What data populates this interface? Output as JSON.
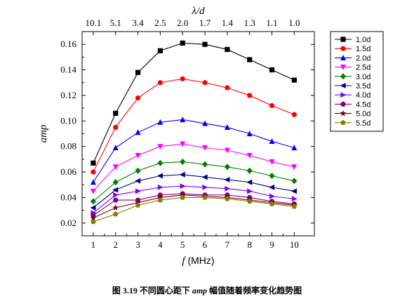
{
  "chart_data": {
    "type": "line",
    "xlabel_italic": "f",
    "xlabel_unit": "(MHz)",
    "ylabel": "amp",
    "top_axis_label": "λ/d",
    "xlim": [
      0.5,
      10.9
    ],
    "ylim": [
      0.01,
      0.17
    ],
    "x_ticks": [
      "1",
      "2",
      "3",
      "4",
      "5",
      "6",
      "7",
      "8",
      "9",
      "10"
    ],
    "y_ticks": [
      "0.02",
      "0.04",
      "0.06",
      "0.08",
      "0.10",
      "0.12",
      "0.14",
      "0.16"
    ],
    "y_tick_values": [
      0.02,
      0.04,
      0.06,
      0.08,
      0.1,
      0.12,
      0.14,
      0.16
    ],
    "top_ticks": [
      "10.1",
      "5.1",
      "3.4",
      "2.5",
      "2.0",
      "1.7",
      "1.4",
      "1.3",
      "1.1",
      "1.0"
    ],
    "legend_position": "right",
    "grid": false,
    "x": [
      1,
      2,
      3,
      4,
      5,
      6,
      7,
      8,
      9,
      10
    ],
    "series": [
      {
        "name": "1.0d",
        "color": "#000000",
        "marker": "square",
        "values": [
          0.067,
          0.106,
          0.138,
          0.155,
          0.161,
          0.16,
          0.156,
          0.148,
          0.14,
          0.132
        ]
      },
      {
        "name": "1.5d",
        "color": "#ff0000",
        "marker": "circle",
        "values": [
          0.06,
          0.095,
          0.118,
          0.13,
          0.133,
          0.13,
          0.126,
          0.12,
          0.112,
          0.105
        ]
      },
      {
        "name": "2.0d",
        "color": "#0000ff",
        "marker": "triangle-up",
        "values": [
          0.052,
          0.079,
          0.091,
          0.099,
          0.101,
          0.098,
          0.095,
          0.09,
          0.084,
          0.079
        ]
      },
      {
        "name": "2.5d",
        "color": "#ff00ff",
        "marker": "triangle-down",
        "values": [
          0.045,
          0.064,
          0.073,
          0.08,
          0.082,
          0.079,
          0.077,
          0.073,
          0.068,
          0.064
        ]
      },
      {
        "name": "3.0d",
        "color": "#008000",
        "marker": "diamond",
        "values": [
          0.037,
          0.052,
          0.061,
          0.067,
          0.068,
          0.066,
          0.064,
          0.061,
          0.057,
          0.053
        ]
      },
      {
        "name": "3.5d",
        "color": "#000080",
        "marker": "triangle-left",
        "values": [
          0.032,
          0.046,
          0.053,
          0.057,
          0.058,
          0.056,
          0.054,
          0.052,
          0.048,
          0.045
        ]
      },
      {
        "name": "4.0d",
        "color": "#8000ff",
        "marker": "triangle-right",
        "values": [
          0.028,
          0.042,
          0.045,
          0.048,
          0.049,
          0.048,
          0.047,
          0.045,
          0.041,
          0.039
        ]
      },
      {
        "name": "4.5d",
        "color": "#800080",
        "marker": "circle",
        "values": [
          0.026,
          0.038,
          0.038,
          0.042,
          0.043,
          0.042,
          0.042,
          0.04,
          0.037,
          0.035
        ]
      },
      {
        "name": "5.0d",
        "color": "#800000",
        "marker": "star",
        "values": [
          0.024,
          0.032,
          0.036,
          0.04,
          0.042,
          0.041,
          0.04,
          0.038,
          0.036,
          0.034
        ]
      },
      {
        "name": "5.5d",
        "color": "#808000",
        "marker": "pentagon",
        "values": [
          0.021,
          0.027,
          0.034,
          0.038,
          0.04,
          0.04,
          0.039,
          0.037,
          0.035,
          0.033
        ]
      }
    ]
  },
  "caption": {
    "prefix": "图 3.19  不同圆心距下 ",
    "term": "amp",
    "suffix": " 幅值随着频率变化趋势图"
  }
}
